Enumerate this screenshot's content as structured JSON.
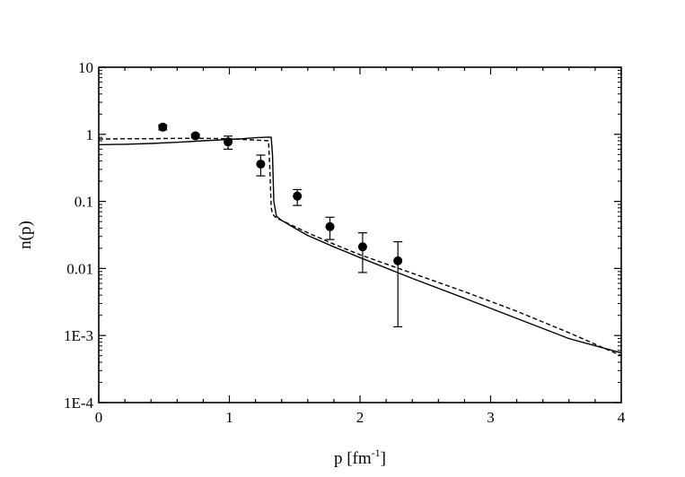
{
  "chart_data": {
    "type": "scatter",
    "title": "",
    "xlabel_main": "p [fm",
    "xlabel_sup": "-1",
    "xlabel_close": "]",
    "ylabel": "n(p)",
    "xlim": [
      0,
      4
    ],
    "ylim": [
      0.0001,
      10
    ],
    "yscale": "log",
    "grid": false,
    "legend": "none",
    "x_ticks": [
      0,
      1,
      2,
      3,
      4
    ],
    "x_tick_labels": [
      "0",
      "1",
      "2",
      "3",
      "4"
    ],
    "y_ticks": [
      0.0001,
      0.001,
      0.01,
      0.1,
      1,
      10
    ],
    "y_tick_labels": [
      "1E-4",
      "1E-3",
      "0.01",
      "0.1",
      "1",
      "10"
    ],
    "series": [
      {
        "style": "markers",
        "color": "#000000",
        "x": [
          0.49,
          0.74,
          0.99,
          1.24,
          1.52,
          1.77,
          2.02,
          2.29
        ],
        "y": [
          1.28,
          0.95,
          0.77,
          0.36,
          0.12,
          0.042,
          0.021,
          0.013
        ],
        "y_low": [
          1.16,
          0.89,
          0.6,
          0.24,
          0.087,
          0.027,
          0.0087,
          0.00135
        ],
        "y_high": [
          1.38,
          1.0,
          0.94,
          0.49,
          0.15,
          0.058,
          0.034,
          0.025
        ]
      },
      {
        "style": "solid",
        "color": "#000000",
        "x": [
          0.0,
          0.2,
          0.4,
          0.6,
          0.8,
          1.0,
          1.1,
          1.2,
          1.3,
          1.32,
          1.33,
          1.34,
          1.36,
          1.4,
          1.5,
          1.6,
          1.8,
          2.0,
          2.4,
          2.8,
          3.2,
          3.6,
          4.0
        ],
        "y": [
          0.7,
          0.71,
          0.73,
          0.76,
          0.8,
          0.84,
          0.86,
          0.89,
          0.91,
          0.9,
          0.5,
          0.1,
          0.06,
          0.052,
          0.04,
          0.031,
          0.021,
          0.0145,
          0.0071,
          0.0036,
          0.0018,
          0.0009,
          0.00055
        ]
      },
      {
        "style": "dashed",
        "color": "#000000",
        "x": [
          0.0,
          0.2,
          0.4,
          0.6,
          0.8,
          1.0,
          1.1,
          1.2,
          1.3,
          1.31,
          1.32,
          1.33,
          1.36,
          1.4,
          1.5,
          1.6,
          1.8,
          2.0,
          2.4,
          2.8,
          3.2,
          3.6,
          4.0
        ],
        "y": [
          0.85,
          0.86,
          0.86,
          0.87,
          0.87,
          0.86,
          0.84,
          0.82,
          0.8,
          0.3,
          0.08,
          0.065,
          0.056,
          0.052,
          0.042,
          0.034,
          0.023,
          0.016,
          0.0085,
          0.0045,
          0.0023,
          0.0011,
          0.0005
        ]
      }
    ]
  }
}
